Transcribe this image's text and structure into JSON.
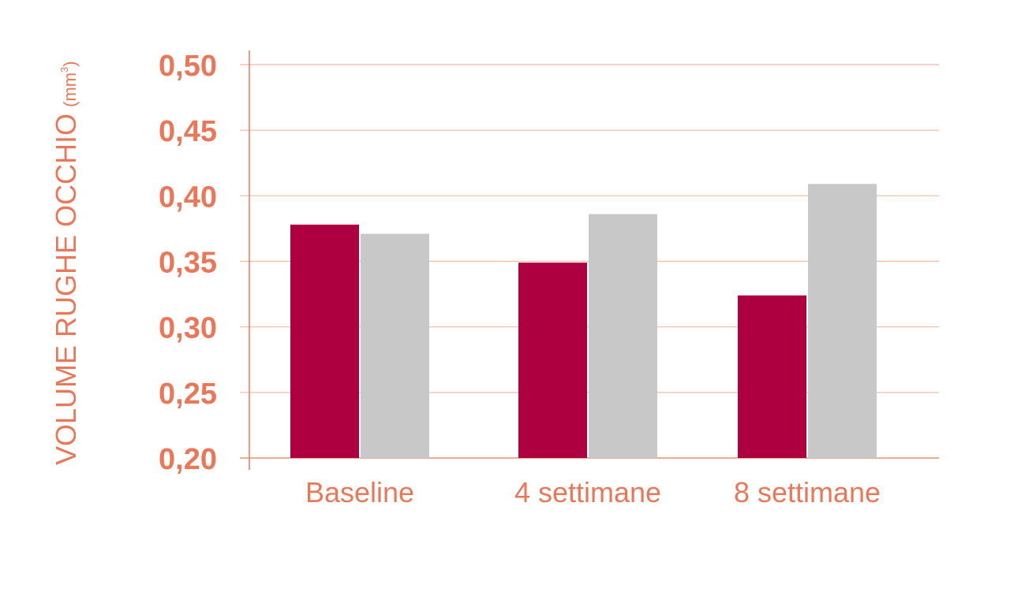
{
  "chart_data": {
    "type": "bar",
    "title": "",
    "ylabel": "VOLUME RUGHE OCCHIO",
    "ylabel_unit": "(mm",
    "ylabel_unit_sup": "3",
    "ylabel_unit_close": ")",
    "xlabel": "",
    "categories": [
      "Baseline",
      "4 settimane",
      "8 settimane"
    ],
    "series": [
      {
        "values": [
          0.378,
          0.349,
          0.324
        ]
      },
      {
        "values": [
          0.371,
          0.386,
          0.409
        ]
      }
    ],
    "ylim": [
      0.2,
      0.5
    ],
    "yticks": [
      "0,20",
      "0,25",
      "0,30",
      "0,35",
      "0,40",
      "0,45",
      "0,50"
    ],
    "grid": true,
    "legend": "none"
  },
  "colors": {
    "accent": "#e8785a",
    "series": [
      "#ae0040",
      "#c8c8c8"
    ],
    "grid": "#f0b9a6"
  }
}
